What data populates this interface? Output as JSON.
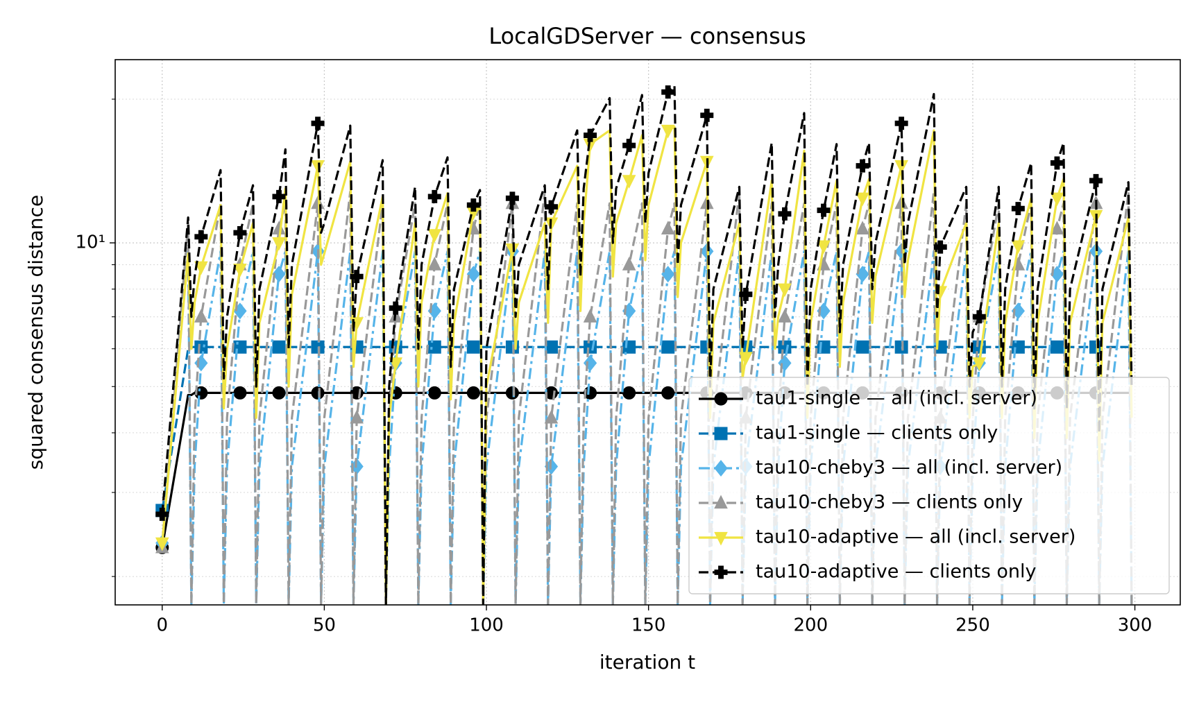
{
  "chart_data": {
    "type": "line",
    "title": "LocalGDServer — consensus",
    "x_label": "iteration t",
    "y_label": "squared consensus distance",
    "log_y": true,
    "grid": true,
    "legend": "lower right",
    "markevery": 12,
    "xlim": [
      -14.5,
      314
    ],
    "ylim": [
      1.744,
      24.2
    ],
    "xticks": [
      0,
      50,
      100,
      150,
      200,
      250,
      300
    ],
    "yticks": [
      {
        "value": 10,
        "label": "10¹"
      }
    ],
    "yminorticks": [
      2,
      3,
      4,
      5,
      6,
      7,
      8,
      9,
      20
    ],
    "x": [
      0,
      8,
      9,
      10,
      12,
      18,
      19,
      20,
      24,
      28,
      29,
      30,
      36,
      38,
      39,
      40,
      48,
      49,
      50,
      58,
      59,
      60,
      68,
      69,
      70,
      72,
      78,
      79,
      80,
      84,
      88,
      89,
      90,
      96,
      98,
      99,
      100,
      108,
      109,
      110,
      118,
      119,
      120,
      128,
      129,
      130,
      132,
      138,
      139,
      140,
      144,
      148,
      149,
      150,
      156,
      158,
      159,
      160,
      168,
      169,
      170,
      178,
      179,
      180,
      188,
      189,
      190,
      192,
      198,
      199,
      200,
      204,
      208,
      209,
      210,
      216,
      218,
      219,
      220,
      228,
      229,
      230,
      238,
      239,
      240,
      248,
      249,
      250,
      252,
      258,
      259,
      260,
      264,
      268,
      269,
      270,
      276,
      278,
      279,
      280,
      288,
      289,
      290,
      298,
      299
    ],
    "series": [
      {
        "name": "tau1-single — all (incl. server)",
        "color": "#000000",
        "linestyle": "solid",
        "marker": "circle",
        "values": [
          2.3,
          4.8,
          4.8,
          4.85,
          4.85,
          4.85,
          4.85,
          4.85,
          4.85,
          4.85,
          4.85,
          4.85,
          4.85,
          4.85,
          4.85,
          4.85,
          4.85,
          4.85,
          4.85,
          4.85,
          4.85,
          4.85,
          4.85,
          4.85,
          4.85,
          4.85,
          4.85,
          4.85,
          4.85,
          4.85,
          4.85,
          4.85,
          4.85,
          4.85,
          4.85,
          4.85,
          4.85,
          4.85,
          4.85,
          4.85,
          4.85,
          4.85,
          4.85,
          4.85,
          4.85,
          4.85,
          4.85,
          4.85,
          4.85,
          4.85,
          4.85,
          4.85,
          4.85,
          4.85,
          4.85,
          4.85,
          4.85,
          4.85,
          4.85,
          4.85,
          4.85,
          4.85,
          4.85,
          4.85,
          4.85,
          4.85,
          4.85,
          4.85,
          4.85,
          4.85,
          4.85,
          4.85,
          4.85,
          4.85,
          4.85,
          4.85,
          4.85,
          4.85,
          4.85,
          4.85,
          4.85,
          4.85,
          4.85,
          4.85,
          4.85,
          4.85,
          4.85,
          4.85,
          4.85,
          4.85,
          4.85,
          4.85,
          4.85,
          4.85,
          4.85,
          4.85,
          4.85,
          4.85,
          4.85,
          4.85,
          4.85,
          4.85,
          4.85,
          4.85,
          4.85
        ]
      },
      {
        "name": "tau1-single — clients only",
        "color": "#0072b2",
        "linestyle": "dashed",
        "marker": "square",
        "values": [
          2.75,
          6.0,
          6.05,
          6.05,
          6.05,
          6.05,
          6.05,
          6.05,
          6.05,
          6.05,
          6.05,
          6.05,
          6.05,
          6.05,
          6.05,
          6.05,
          6.05,
          6.05,
          6.05,
          6.05,
          6.05,
          6.05,
          6.05,
          6.05,
          6.05,
          6.05,
          6.05,
          6.05,
          6.05,
          6.05,
          6.05,
          6.05,
          6.05,
          6.05,
          6.05,
          6.05,
          6.05,
          6.05,
          6.05,
          6.05,
          6.05,
          6.05,
          6.05,
          6.05,
          6.05,
          6.05,
          6.05,
          6.05,
          6.05,
          6.05,
          6.05,
          6.05,
          6.05,
          6.05,
          6.05,
          6.05,
          6.05,
          6.05,
          6.05,
          6.05,
          6.05,
          6.05,
          6.05,
          6.05,
          6.05,
          6.05,
          6.05,
          6.05,
          6.05,
          6.05,
          6.05,
          6.05,
          6.05,
          6.05,
          6.05,
          6.05,
          6.05,
          6.05,
          6.05,
          6.05,
          6.05,
          6.05,
          6.05,
          6.05,
          6.05,
          6.05,
          6.05,
          6.05,
          6.05,
          6.05,
          6.05,
          6.05,
          6.05,
          6.05,
          6.05,
          6.05,
          6.05,
          6.05,
          6.05,
          6.05,
          6.05,
          6.05,
          6.05,
          6.05,
          6.05
        ]
      },
      {
        "name": "tau10-cheby3 — all (incl. server)",
        "color": "#56b4e9",
        "linestyle": "dashdot",
        "marker": "diamond",
        "values": [
          2.35,
          9.6,
          1.75,
          3.4,
          5.6,
          9.6,
          1.75,
          3.4,
          7.2,
          9.6,
          1.75,
          3.4,
          8.6,
          9.6,
          1.75,
          3.4,
          9.6,
          1.75,
          3.4,
          9.6,
          1.75,
          3.4,
          9.6,
          1.75,
          3.4,
          5.6,
          9.6,
          1.75,
          3.4,
          7.2,
          9.6,
          1.75,
          3.4,
          8.6,
          9.6,
          1.75,
          3.4,
          9.6,
          1.75,
          3.4,
          9.6,
          1.75,
          3.4,
          9.6,
          1.75,
          3.4,
          5.6,
          9.6,
          1.75,
          3.4,
          7.2,
          9.6,
          1.75,
          3.4,
          8.6,
          9.6,
          1.75,
          3.4,
          9.6,
          1.75,
          3.4,
          9.6,
          1.75,
          3.4,
          9.6,
          1.75,
          3.4,
          5.6,
          9.6,
          1.75,
          3.4,
          7.2,
          9.6,
          1.75,
          3.4,
          8.6,
          9.6,
          1.75,
          3.4,
          9.6,
          1.75,
          3.4,
          9.6,
          1.75,
          3.4,
          9.6,
          1.75,
          3.4,
          5.6,
          9.6,
          1.75,
          3.4,
          7.2,
          9.6,
          1.75,
          3.4,
          8.6,
          9.6,
          1.75,
          3.4,
          9.6,
          1.75,
          3.4,
          9.6,
          1.75
        ]
      },
      {
        "name": "tau10-cheby3 — clients only",
        "color": "#999999",
        "linestyle": "dashed",
        "marker": "triangle-up",
        "values": [
          2.3,
          11.0,
          1.75,
          4.3,
          7.0,
          12.1,
          1.75,
          4.3,
          9.0,
          12.1,
          1.75,
          4.3,
          10.7,
          12.1,
          1.75,
          4.3,
          12.1,
          1.75,
          4.3,
          12.8,
          1.75,
          4.3,
          12.1,
          1.75,
          4.3,
          7.0,
          12.1,
          1.75,
          4.3,
          9.0,
          12.1,
          1.75,
          4.3,
          10.7,
          12.1,
          1.75,
          4.3,
          12.1,
          1.75,
          4.3,
          12.8,
          1.75,
          4.3,
          12.1,
          1.75,
          4.3,
          7.0,
          12.1,
          1.75,
          4.3,
          9.0,
          12.1,
          1.75,
          4.3,
          10.7,
          12.1,
          1.75,
          4.3,
          12.1,
          1.75,
          4.3,
          12.8,
          1.75,
          4.3,
          12.1,
          1.75,
          4.3,
          7.0,
          12.1,
          1.75,
          4.3,
          9.0,
          12.1,
          1.75,
          4.3,
          10.7,
          12.1,
          1.75,
          4.3,
          12.1,
          1.75,
          4.3,
          12.8,
          1.75,
          4.3,
          12.1,
          1.75,
          4.3,
          7.0,
          12.1,
          1.75,
          4.3,
          9.0,
          12.1,
          1.75,
          4.3,
          10.7,
          12.1,
          1.75,
          4.3,
          12.1,
          1.75,
          4.3,
          12.8,
          1.75
        ]
      },
      {
        "name": "tau10-adaptive — all (incl. server)",
        "color": "#f0e442",
        "linestyle": "solid",
        "marker": "triangle-down",
        "values": [
          2.35,
          9.5,
          6.0,
          7.5,
          8.9,
          12.0,
          4.5,
          6.0,
          8.8,
          11.0,
          4.3,
          6.8,
          10.0,
          13.0,
          5.0,
          7.8,
          14.5,
          9.0,
          9.5,
          14.8,
          5.5,
          6.8,
          12.5,
          1.75,
          4.3,
          5.6,
          11.0,
          5.0,
          7.5,
          10.4,
          12.7,
          4.7,
          6.8,
          11.6,
          11.8,
          1.75,
          5.0,
          9.7,
          6.0,
          7.5,
          11.0,
          6.8,
          11.0,
          14.5,
          7.2,
          11.0,
          16.1,
          17.2,
          8.5,
          11.0,
          13.5,
          16.8,
          9.2,
          12.0,
          17.2,
          17.5,
          7.7,
          10.0,
          14.8,
          4.3,
          6.8,
          11.0,
          5.2,
          5.75,
          13.5,
          6.0,
          7.0,
          8.0,
          15.6,
          4.3,
          6.8,
          9.85,
          13.5,
          5.5,
          7.5,
          12.4,
          13.6,
          6.8,
          8.5,
          14.5,
          7.7,
          9.2,
          17.2,
          6.0,
          7.9,
          11.0,
          4.3,
          5.5,
          5.6,
          11.0,
          4.3,
          6.8,
          9.85,
          12.4,
          3.9,
          6.8,
          12.4,
          13.6,
          3.9,
          6.8,
          11.4,
          3.5,
          6.8,
          11.3,
          4.3
        ]
      },
      {
        "name": "tau10-adaptive — clients only",
        "color": "#000000",
        "linestyle": "dashed",
        "marker": "plus",
        "values": [
          2.7,
          11.3,
          7.0,
          8.5,
          10.3,
          14.2,
          5.2,
          7.0,
          10.5,
          13.2,
          5.0,
          8.0,
          12.5,
          15.7,
          6.0,
          9.0,
          17.8,
          10.5,
          11.0,
          17.6,
          6.5,
          8.5,
          14.9,
          1.75,
          5.0,
          7.3,
          13.1,
          6.0,
          9.0,
          12.5,
          15.1,
          5.5,
          8.0,
          12.0,
          12.9,
          1.75,
          6.0,
          12.4,
          7.0,
          9.0,
          13.2,
          8.0,
          11.9,
          17.2,
          8.5,
          13.0,
          16.8,
          20.1,
          10.0,
          13.0,
          16.0,
          20.4,
          11.0,
          14.0,
          20.7,
          21.3,
          9.0,
          12.0,
          18.5,
          5.0,
          8.0,
          13.1,
          6.0,
          7.8,
          16.2,
          7.0,
          9.0,
          11.5,
          18.7,
          5.0,
          8.0,
          11.7,
          16.1,
          6.5,
          9.0,
          14.5,
          16.2,
          8.0,
          10.0,
          17.8,
          9.0,
          11.0,
          20.5,
          7.0,
          9.8,
          13.1,
          5.0,
          6.5,
          7.0,
          13.1,
          5.0,
          8.0,
          11.8,
          14.7,
          4.5,
          8.0,
          14.7,
          16.2,
          4.5,
          8.0,
          13.5,
          4.0,
          8.0,
          13.4,
          5.0
        ]
      }
    ]
  }
}
